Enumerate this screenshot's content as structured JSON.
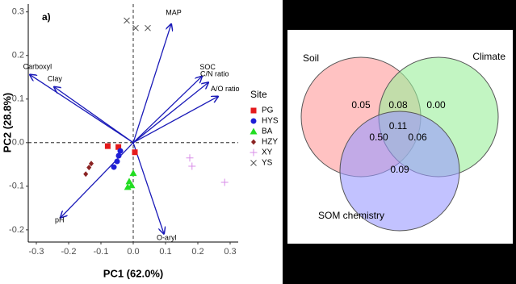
{
  "chart_data": [
    {
      "type": "biplot",
      "panel_label": "a)",
      "x_label": "PC1 (62.0%)",
      "y_label": "PC2 (28.8%)",
      "legend_title": "Site",
      "xlim": [
        -0.325,
        0.325
      ],
      "ylim": [
        -0.228,
        0.318
      ],
      "xticks": [
        -0.3,
        -0.2,
        -0.1,
        {
          "value": 0,
          "label": "0.0"
        },
        0.1,
        0.2,
        0.3
      ],
      "yticks": [
        -0.2,
        -0.1,
        {
          "value": 0,
          "label": "0.0"
        },
        0.1,
        0.2,
        0.3
      ],
      "series": [
        {
          "name": "PG",
          "color": "#e41a1c",
          "marker": "square",
          "x": [
            -0.079,
            -0.046,
            0.005
          ],
          "values": [
            -0.008,
            -0.01,
            -0.022
          ]
        },
        {
          "name": "HYS",
          "color": "#1f1fd6",
          "marker": "circle",
          "x": [
            -0.04,
            -0.045,
            -0.05,
            -0.06
          ],
          "values": [
            -0.019,
            -0.03,
            -0.043,
            -0.056
          ]
        },
        {
          "name": "BA",
          "color": "#22dd22",
          "marker": "triangle",
          "x": [
            0,
            -0.0125,
            -0.005,
            -0.017
          ],
          "values": [
            -0.07,
            -0.089,
            -0.098,
            -0.102
          ]
        },
        {
          "name": "HZY",
          "color": "#8b2323",
          "marker": "diamond",
          "x": [
            -0.13,
            -0.137,
            -0.147
          ],
          "values": [
            -0.048,
            -0.057,
            -0.072
          ]
        },
        {
          "name": "XY",
          "color": "#d98ee8",
          "marker": "plus",
          "x": [
            0.175,
            0.182,
            0.283
          ],
          "values": [
            -0.035,
            -0.054,
            -0.091
          ]
        },
        {
          "name": "YS",
          "color": "#555555",
          "marker": "cross",
          "x": [
            -0.02,
            0.0075,
            0.045
          ],
          "values": [
            0.28,
            0.263,
            0.263
          ]
        }
      ],
      "arrow_color": "#1a1ab8",
      "loadings": [
        {
          "name": "MAP",
          "x": 0.1175,
          "y": 0.272
        },
        {
          "name": "SOC",
          "x": 0.2125,
          "y": 0.152
        },
        {
          "name": "C/N ratio",
          "x": 0.2325,
          "y": 0.138
        },
        {
          "name": "A/O ratio",
          "x": 0.2625,
          "y": 0.106
        },
        {
          "name": "Carboxyl",
          "x": -0.32,
          "y": 0.156
        },
        {
          "name": "Clay",
          "x": -0.245,
          "y": 0.128
        },
        {
          "name": "pH",
          "x": -0.225,
          "y": -0.172
        },
        {
          "name": "O-aryl",
          "x": 0.095,
          "y": -0.209
        }
      ]
    },
    {
      "type": "venn",
      "sets": [
        {
          "name": "Soil",
          "color": "#ff9999"
        },
        {
          "name": "Climate",
          "color": "#99ee99"
        },
        {
          "name": "SOM chemistry",
          "color": "#9999ff"
        }
      ],
      "values": [
        0.05,
        0.08,
        0,
        0.11,
        0.5,
        0.06,
        0.09
      ],
      "value_labels": [
        "0.05",
        "0.08",
        "0.00",
        "0.11",
        "0.50",
        "0.06",
        "0.09"
      ]
    }
  ]
}
